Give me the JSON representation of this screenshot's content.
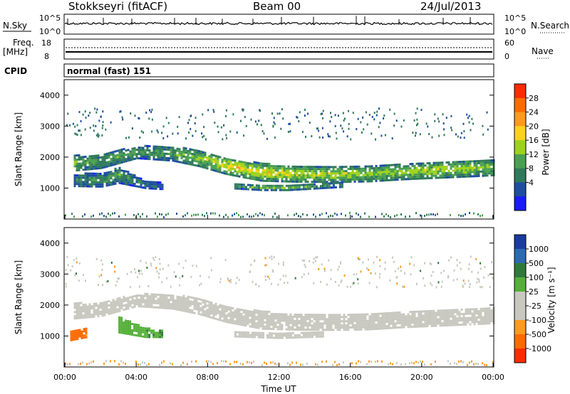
{
  "header": {
    "title": "Stokkseyri (fitACF)",
    "beam": "Beam 00",
    "date": "24/Jul/2013"
  },
  "panels": {
    "noise": {
      "left_label": "N.Sky",
      "right_label": "N.Search",
      "left_ticks": [
        "10^5",
        "10^0"
      ],
      "right_ticks": [
        "10^5",
        "10^0"
      ]
    },
    "freq": {
      "left_label": "Freq.",
      "left_unit": "[MHz]",
      "left_ticks": [
        "18",
        "8"
      ],
      "right_label": "Nave",
      "right_ticks": [
        "60",
        "0"
      ]
    },
    "cpid": {
      "label": "CPID",
      "value": "normal (fast) 151"
    }
  },
  "colorbars": {
    "power": {
      "label": "Power [dB]",
      "ticks": [
        "28",
        "24",
        "20",
        "16",
        "12",
        "8",
        "4"
      ],
      "colors": [
        "#ff2a00",
        "#ff6a00",
        "#ff9a1a",
        "#ffd21a",
        "#9ed21a",
        "#4aa050",
        "#2f7a5a",
        "#1e4ea0",
        "#1a1aff"
      ]
    },
    "velocity": {
      "label": "Velocity [m s⁻¹]",
      "ticks": [
        "1000",
        "500",
        "100",
        "25",
        "-25",
        "-100",
        "-500",
        "-1000"
      ],
      "colors": [
        "#1a3aa0",
        "#2a6ab0",
        "#2f7a3a",
        "#55b03a",
        "#c8c8c0",
        "#c8c8c0",
        "#ff9a1a",
        "#ff6a00",
        "#ff2a00"
      ]
    }
  },
  "x_axis": {
    "label": "Time UT",
    "ticks": [
      "00:00",
      "04:00",
      "08:00",
      "12:00",
      "16:00",
      "20:00",
      "00:00"
    ]
  },
  "chart_data": [
    {
      "type": "heatmap",
      "title": "",
      "ylabel": "Slant Range [km]",
      "xlabel": "Time UT",
      "xlim": [
        0,
        24
      ],
      "ylim": [
        0,
        4500
      ],
      "yticks": [
        1000,
        2000,
        3000,
        4000
      ],
      "colorbar_label": "Power [dB]",
      "colorbar_range": [
        0,
        32
      ],
      "bands": [
        {
          "name": "main",
          "points": [
            [
              0.5,
              1850,
              250,
              14
            ],
            [
              2,
              1900,
              220,
              12
            ],
            [
              4,
              2200,
              200,
              11
            ],
            [
              6,
              2150,
              230,
              12
            ],
            [
              7.5,
              2000,
              260,
              16
            ],
            [
              9,
              1750,
              260,
              20
            ],
            [
              11,
              1550,
              280,
              20
            ],
            [
              13,
              1500,
              260,
              18
            ],
            [
              15,
              1480,
              250,
              17
            ],
            [
              17,
              1500,
              250,
              16
            ],
            [
              19,
              1560,
              240,
              16
            ],
            [
              21,
              1620,
              250,
              17
            ],
            [
              23,
              1680,
              260,
              17
            ],
            [
              24,
              1700,
              250,
              15
            ]
          ]
        },
        {
          "name": "lower",
          "points": [
            [
              0.5,
              1300,
              200,
              8
            ],
            [
              2,
              1300,
              220,
              10
            ],
            [
              3,
              1450,
              250,
              12
            ],
            [
              4.5,
              1150,
              120,
              7
            ],
            [
              5.5,
              1100,
              100,
              6
            ]
          ]
        },
        {
          "name": "near",
          "points": [
            [
              9.5,
              1100,
              80,
              10
            ],
            [
              11,
              1050,
              80,
              14
            ],
            [
              12.5,
              1050,
              80,
              16
            ],
            [
              14,
              1100,
              80,
              12
            ],
            [
              15.5,
              1150,
              80,
              8
            ]
          ]
        }
      ]
    },
    {
      "type": "heatmap",
      "title": "",
      "ylabel": "Slant Range [km]",
      "xlabel": "Time UT",
      "xlim": [
        0,
        24
      ],
      "ylim": [
        0,
        4500
      ],
      "yticks": [
        1000,
        2000,
        3000,
        4000
      ],
      "colorbar_label": "Velocity [m s⁻¹]",
      "colorbar_range": [
        -1000,
        1000
      ],
      "bands": [
        {
          "name": "groundscatter",
          "points": [
            [
              0.5,
              1850,
              250,
              0
            ],
            [
              2,
              1900,
              220,
              0
            ],
            [
              4,
              2200,
              200,
              0
            ],
            [
              6,
              2150,
              230,
              0
            ],
            [
              7.5,
              2000,
              260,
              0
            ],
            [
              9,
              1750,
              260,
              0
            ],
            [
              11,
              1550,
              280,
              0
            ],
            [
              13,
              1500,
              260,
              0
            ],
            [
              15,
              1480,
              250,
              0
            ],
            [
              17,
              1500,
              250,
              0
            ],
            [
              19,
              1560,
              240,
              0
            ],
            [
              21,
              1620,
              250,
              0
            ],
            [
              23,
              1680,
              260,
              0
            ],
            [
              24,
              1700,
              250,
              0
            ]
          ]
        },
        {
          "name": "negative",
          "points": [
            [
              0.3,
              1050,
              150,
              -300
            ],
            [
              1.2,
              1150,
              150,
              -200
            ]
          ]
        },
        {
          "name": "positive",
          "points": [
            [
              3,
              1400,
              250,
              150
            ],
            [
              4.5,
              1150,
              150,
              100
            ],
            [
              5.5,
              1100,
              100,
              80
            ]
          ]
        },
        {
          "name": "near",
          "points": [
            [
              9.5,
              1100,
              80,
              0
            ],
            [
              12,
              1050,
              80,
              0
            ],
            [
              14.5,
              1100,
              80,
              0
            ]
          ]
        }
      ]
    }
  ]
}
